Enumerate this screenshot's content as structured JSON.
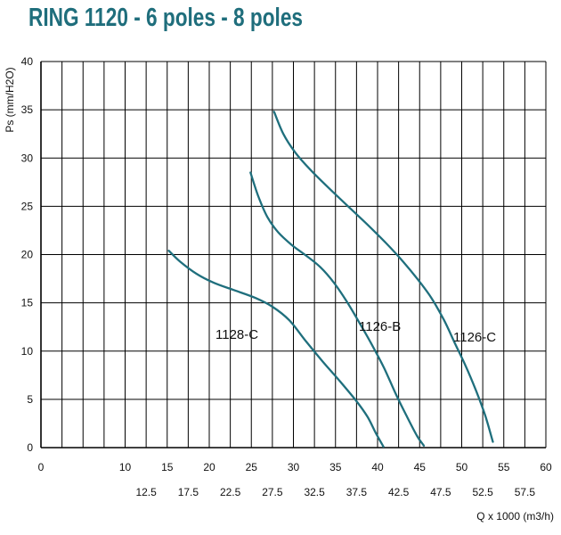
{
  "title": "RING 1120 - 6 poles - 8 poles",
  "chart_data": {
    "type": "line",
    "title": "RING 1120 - 6 poles - 8 poles",
    "ylabel": "Ps (mm/H2O)",
    "xlabel": "Q x 1000 (m3/h)",
    "xlim": [
      0,
      60
    ],
    "ylim": [
      0,
      40
    ],
    "x_major_ticks": [
      "0",
      "10",
      "15",
      "20",
      "25",
      "30",
      "35",
      "40",
      "45",
      "50",
      "55",
      "60"
    ],
    "x_minor_ticks": [
      "12.5",
      "17.5",
      "22.5",
      "27.5",
      "32.5",
      "37.5",
      "42.5",
      "47.5",
      "52.5",
      "57.5"
    ],
    "y_ticks": [
      "0",
      "5",
      "10",
      "15",
      "20",
      "25",
      "30",
      "35",
      "40"
    ],
    "grid": true,
    "line_color": "#1f6f7d",
    "series": [
      {
        "name": "1128-C",
        "points": [
          [
            15.2,
            20.4
          ],
          [
            16.5,
            19.3
          ],
          [
            18.5,
            18.0
          ],
          [
            20.5,
            17.1
          ],
          [
            23,
            16.3
          ],
          [
            25.5,
            15.5
          ],
          [
            27.5,
            14.6
          ],
          [
            29.5,
            13.2
          ],
          [
            31.5,
            11.0
          ],
          [
            33.5,
            8.9
          ],
          [
            35.5,
            6.9
          ],
          [
            37.5,
            4.8
          ],
          [
            38.8,
            3.2
          ],
          [
            39.8,
            1.5
          ],
          [
            40.7,
            0.1
          ]
        ]
      },
      {
        "name": "1126-B",
        "points": [
          [
            24.9,
            28.5
          ],
          [
            25.8,
            26.1
          ],
          [
            26.9,
            23.9
          ],
          [
            28.2,
            22.3
          ],
          [
            29.8,
            21.0
          ],
          [
            31.5,
            19.9
          ],
          [
            33.2,
            18.7
          ],
          [
            34.8,
            17.1
          ],
          [
            36.3,
            15.2
          ],
          [
            37.8,
            13.0
          ],
          [
            39.3,
            10.7
          ],
          [
            40.8,
            8.2
          ],
          [
            42.2,
            5.5
          ],
          [
            43.5,
            3.2
          ],
          [
            44.7,
            1.2
          ],
          [
            45.5,
            0.2
          ]
        ]
      },
      {
        "name": "1126-C",
        "points": [
          [
            27.7,
            34.8
          ],
          [
            28.8,
            32.5
          ],
          [
            30.2,
            30.6
          ],
          [
            32,
            28.8
          ],
          [
            34.2,
            26.9
          ],
          [
            36.5,
            25.0
          ],
          [
            38.8,
            23.1
          ],
          [
            41,
            21.2
          ],
          [
            43,
            19.3
          ],
          [
            44.8,
            17.4
          ],
          [
            46.4,
            15.5
          ],
          [
            47.9,
            13.2
          ],
          [
            49.2,
            10.8
          ],
          [
            50.5,
            8.4
          ],
          [
            51.7,
            5.9
          ],
          [
            52.8,
            3.3
          ],
          [
            53.7,
            0.6
          ]
        ]
      }
    ]
  }
}
